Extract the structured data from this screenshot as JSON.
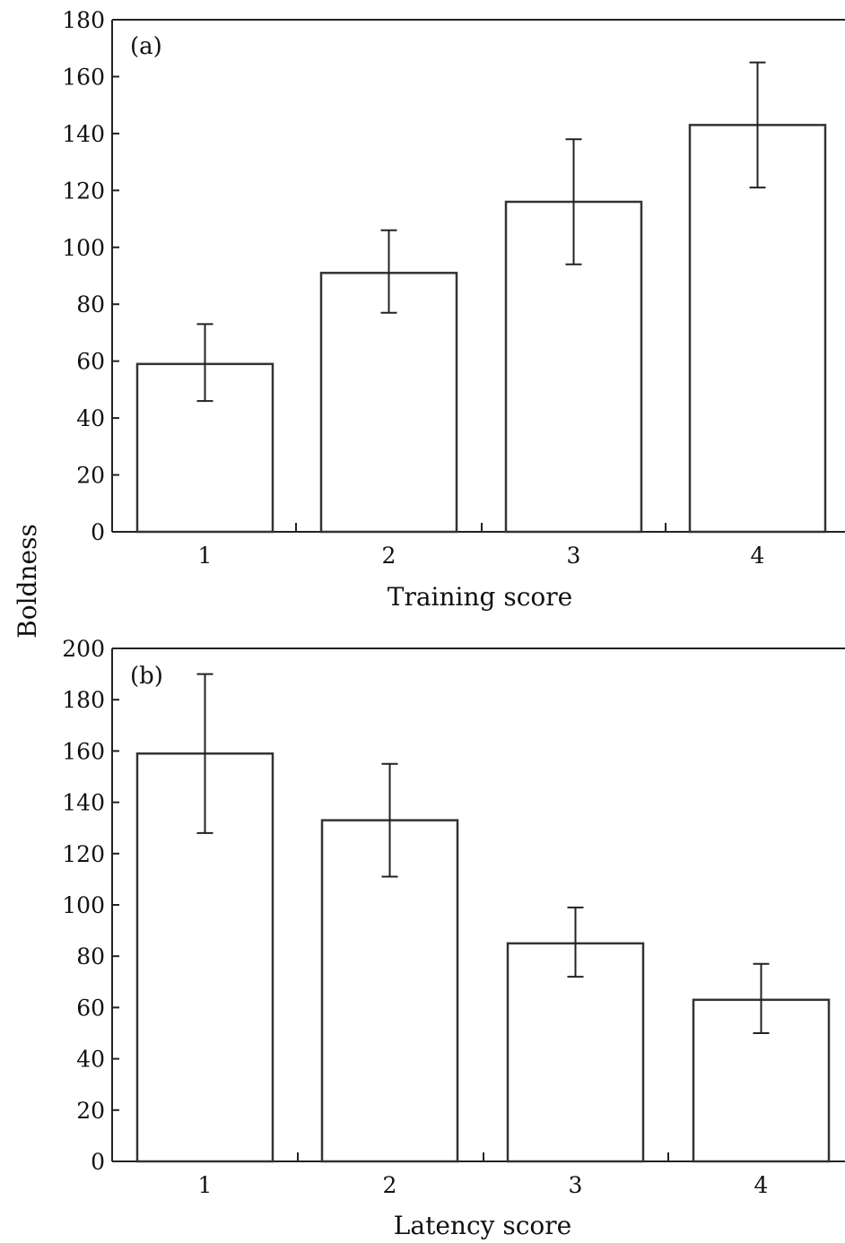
{
  "figure": {
    "ylabel": "Boldness"
  },
  "chart_data": [
    {
      "type": "bar",
      "panel_label": "(a)",
      "categories": [
        "1",
        "2",
        "3",
        "4"
      ],
      "values": [
        59,
        91,
        116,
        143
      ],
      "errors": [
        [
          46,
          73
        ],
        [
          77,
          106
        ],
        [
          94,
          138
        ],
        [
          121,
          165
        ]
      ],
      "xlabel": "Training score",
      "ylabel": "Boldness",
      "ylim": [
        0,
        180
      ],
      "yticks": [
        0,
        20,
        40,
        60,
        80,
        100,
        120,
        140,
        160,
        180
      ],
      "grid": false
    },
    {
      "type": "bar",
      "panel_label": "(b)",
      "categories": [
        "1",
        "2",
        "3",
        "4"
      ],
      "values": [
        159,
        133,
        85,
        63
      ],
      "errors": [
        [
          128,
          190
        ],
        [
          111,
          155
        ],
        [
          72,
          99
        ],
        [
          50,
          77
        ]
      ],
      "xlabel": "Latency score",
      "ylabel": "Boldness",
      "ylim": [
        0,
        200
      ],
      "yticks": [
        0,
        20,
        40,
        60,
        80,
        100,
        120,
        140,
        160,
        180,
        200
      ],
      "grid": false
    }
  ]
}
